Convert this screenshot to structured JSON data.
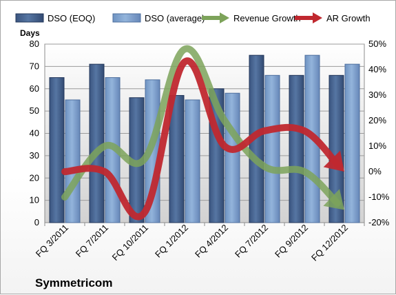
{
  "chart_data": {
    "type": "bar",
    "title": "",
    "company": "Symmetricom",
    "ylabel_left": "Days",
    "ylim_left": [
      0,
      80
    ],
    "yticks_left": [
      0,
      10,
      20,
      30,
      40,
      50,
      60,
      70,
      80
    ],
    "ylim_right": [
      -20,
      50
    ],
    "yticks_right": [
      "-20%",
      "-10%",
      "0%",
      "10%",
      "20%",
      "30%",
      "40%",
      "50%"
    ],
    "yticks_right_values": [
      -20,
      -10,
      0,
      10,
      20,
      30,
      40,
      50
    ],
    "grid": true,
    "legend_position": "top",
    "categories": [
      "FQ 3/2011",
      "FQ 7/2011",
      "FQ 10/2011",
      "FQ 1/2012",
      "FQ 4/2012",
      "FQ 7/2012",
      "FQ 9/2012",
      "FQ 12/2012"
    ],
    "series": [
      {
        "name": "DSO (EOQ)",
        "kind": "bar",
        "axis": "left",
        "color": "#4a6896",
        "values": [
          65,
          71,
          56,
          57,
          60,
          75,
          66,
          66
        ]
      },
      {
        "name": "DSO (average)",
        "kind": "bar",
        "axis": "left",
        "color": "#7fa3d0",
        "values": [
          55,
          65,
          64,
          55,
          58,
          66,
          75,
          71
        ]
      },
      {
        "name": "Revenue Growth",
        "kind": "arrow-line",
        "axis": "right",
        "color": "#7da35a",
        "values": [
          -10,
          10,
          5,
          48,
          20,
          2,
          0,
          -15
        ]
      },
      {
        "name": "AR Growth",
        "kind": "arrow-line",
        "axis": "right",
        "color": "#c0282f",
        "values": [
          0,
          0,
          -16,
          43,
          10,
          16,
          16,
          0
        ]
      }
    ]
  }
}
